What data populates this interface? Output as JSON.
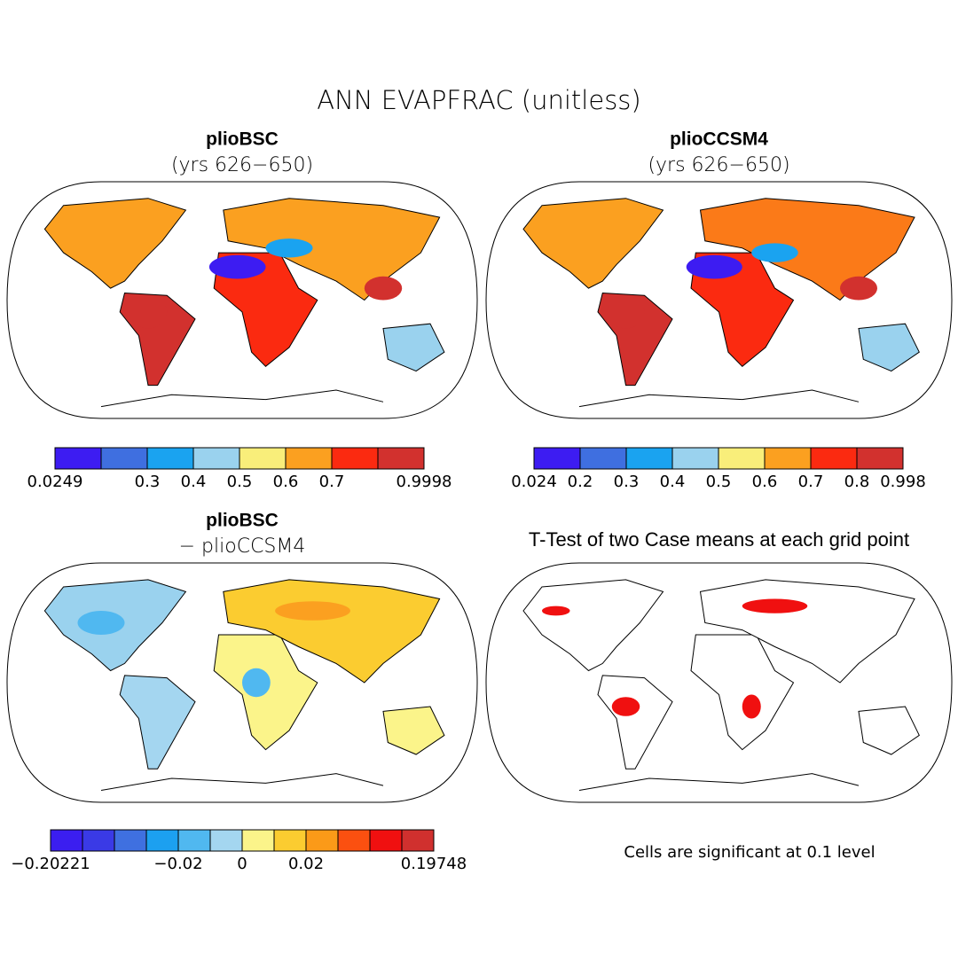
{
  "header": {
    "title": "ANN EVAPFRAC (unitless)"
  },
  "panels": [
    {
      "title": "plioBSC",
      "subtitle": "(yrs 626−650)",
      "colorbar": {
        "colors": [
          "#3d1cf2",
          "#3f6fe0",
          "#1aa3f0",
          "#9ad2ee",
          "#f9ee7a",
          "#fba020",
          "#fb2a10",
          "#d2312e"
        ],
        "labels": [
          "0.0249",
          null,
          "0.3",
          "0.4",
          "0.5",
          "0.6",
          "0.7",
          null,
          "0.9998"
        ]
      }
    },
    {
      "title": "plioCCSM4",
      "subtitle": "(yrs 626−650)",
      "colorbar": {
        "colors": [
          "#3d1cf2",
          "#3f6fe0",
          "#1aa3f0",
          "#9ad2ee",
          "#f9ee7a",
          "#fba020",
          "#fb2a10",
          "#d2312e"
        ],
        "labels": [
          "0.024",
          "0.2",
          "0.3",
          "0.4",
          "0.5",
          "0.6",
          "0.7",
          "0.8",
          "0.998"
        ]
      }
    },
    {
      "title": "plioBSC",
      "subtitle": "− plioCCSM4",
      "colorbar": {
        "colors": [
          "#3b1ef0",
          "#3a3ae6",
          "#3f70e0",
          "#1ca0f0",
          "#50b8f0",
          "#a4d6f0",
          "#fbf48a",
          "#fbcc30",
          "#fb9a18",
          "#fb5010",
          "#f01010",
          "#d0302e"
        ],
        "labels": [
          "−0.20221",
          null,
          null,
          null,
          "−0.02",
          null,
          "0",
          null,
          "0.02",
          null,
          null,
          null,
          "0.19748"
        ]
      }
    },
    {
      "title": "T-Test of two Case means at each grid point",
      "note": "Cells are significant at 0.1 level"
    }
  ]
}
